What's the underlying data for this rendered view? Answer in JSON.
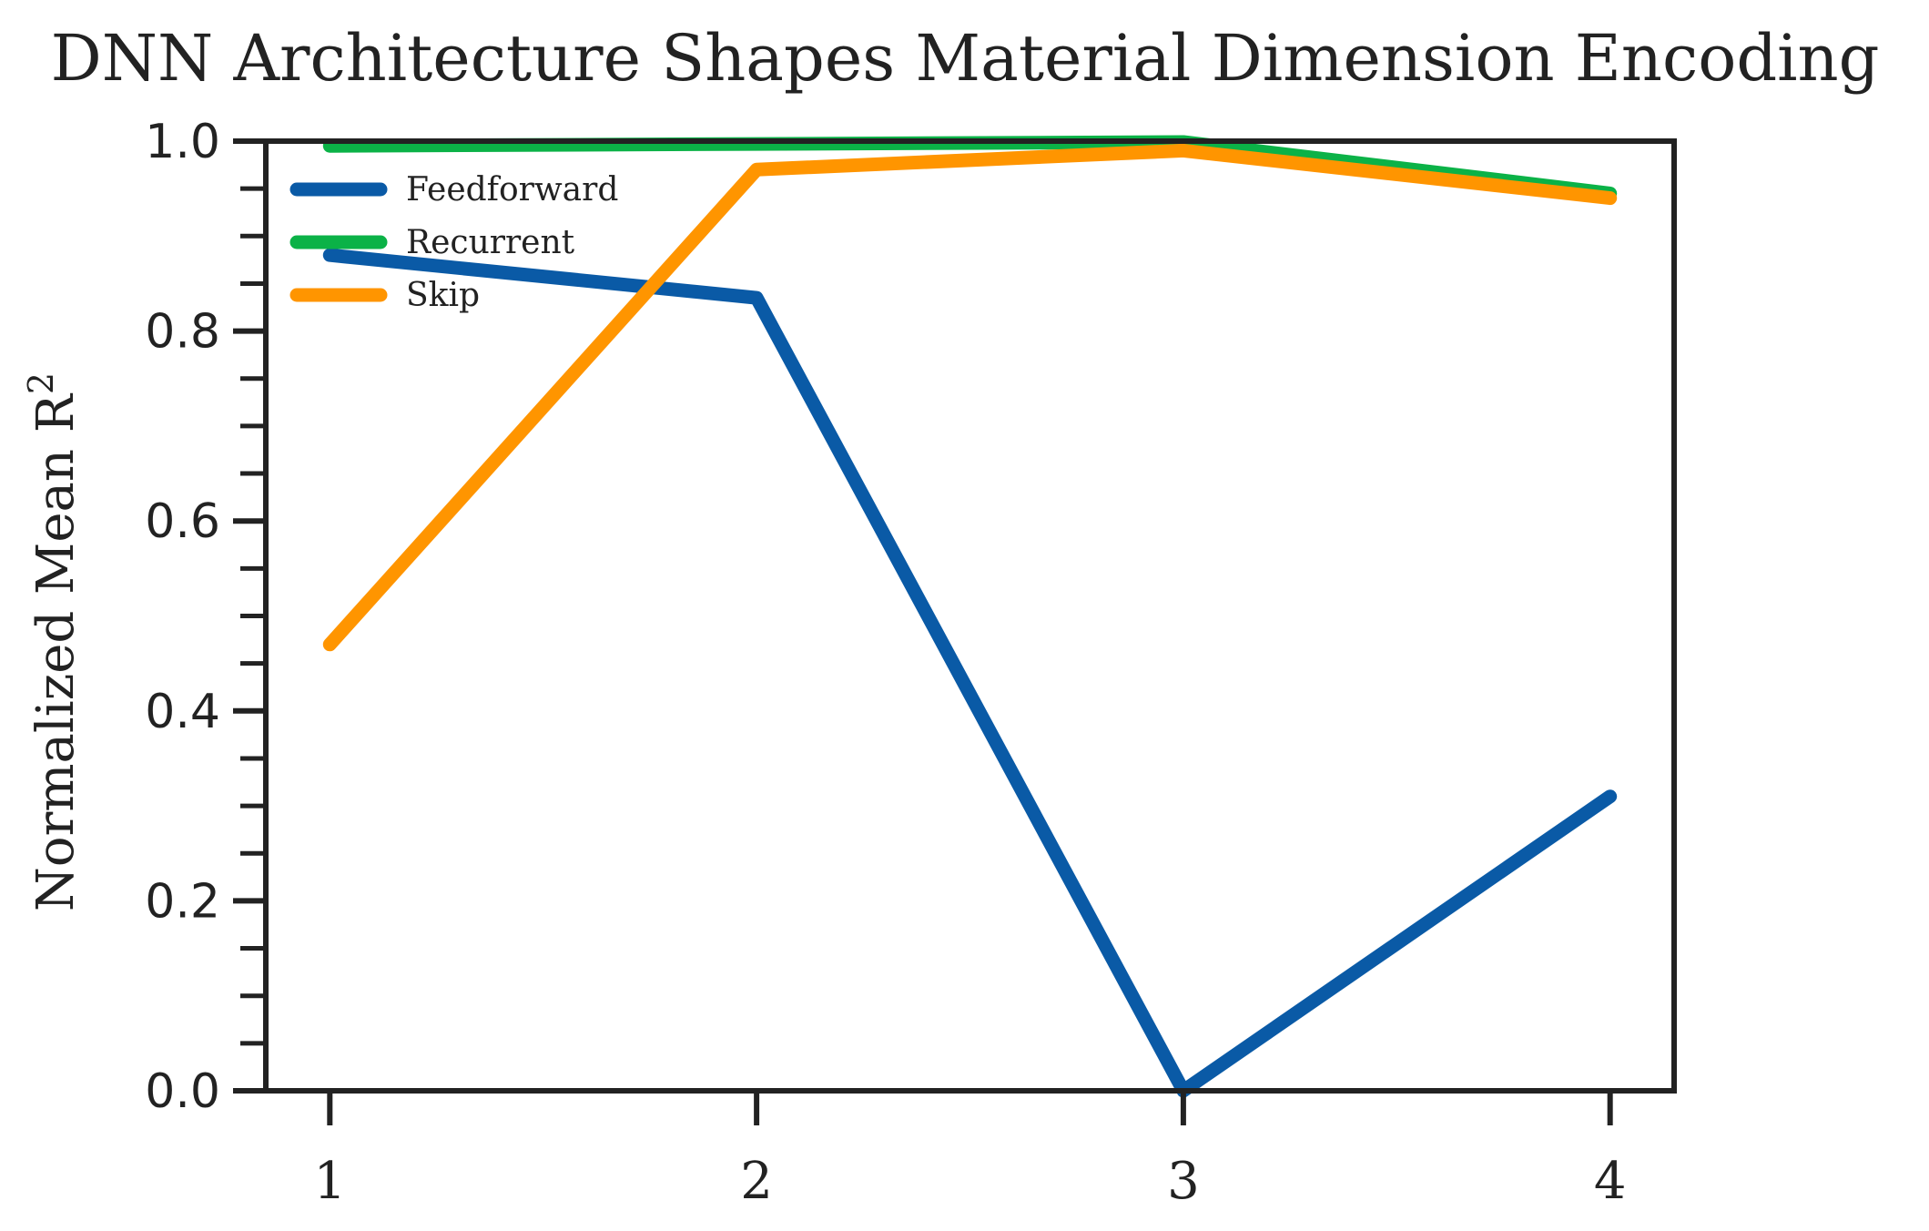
{
  "chart_data": {
    "type": "line",
    "title": "DNN Architecture Shapes Material Dimension Encoding",
    "xlabel": "",
    "ylabel": "Normalized Mean R",
    "ylabel_superscript": "2",
    "x": [
      1,
      2,
      3,
      4
    ],
    "x_tick_labels": [
      "1",
      "2",
      "3",
      "4"
    ],
    "xlim": [
      0.85,
      4.15
    ],
    "ylim": [
      0.0,
      1.0
    ],
    "y_tick_labels": [
      "0.0",
      "0.2",
      "0.4",
      "0.6",
      "0.8",
      "1.0"
    ],
    "y_ticks": [
      0.0,
      0.2,
      0.4,
      0.6,
      0.8,
      1.0
    ],
    "y_minor_step": 0.05,
    "grid": false,
    "legend_position": "top-left",
    "series": [
      {
        "name": "Feedforward",
        "color": "#0a5aa6",
        "values": [
          0.88,
          0.835,
          0.0,
          0.31
        ]
      },
      {
        "name": "Recurrent",
        "color": "#0bb247",
        "values": [
          0.995,
          0.997,
          0.999,
          0.945
        ]
      },
      {
        "name": "Skip",
        "color": "#ff9500",
        "values": [
          0.47,
          0.97,
          0.99,
          0.94
        ]
      }
    ]
  }
}
